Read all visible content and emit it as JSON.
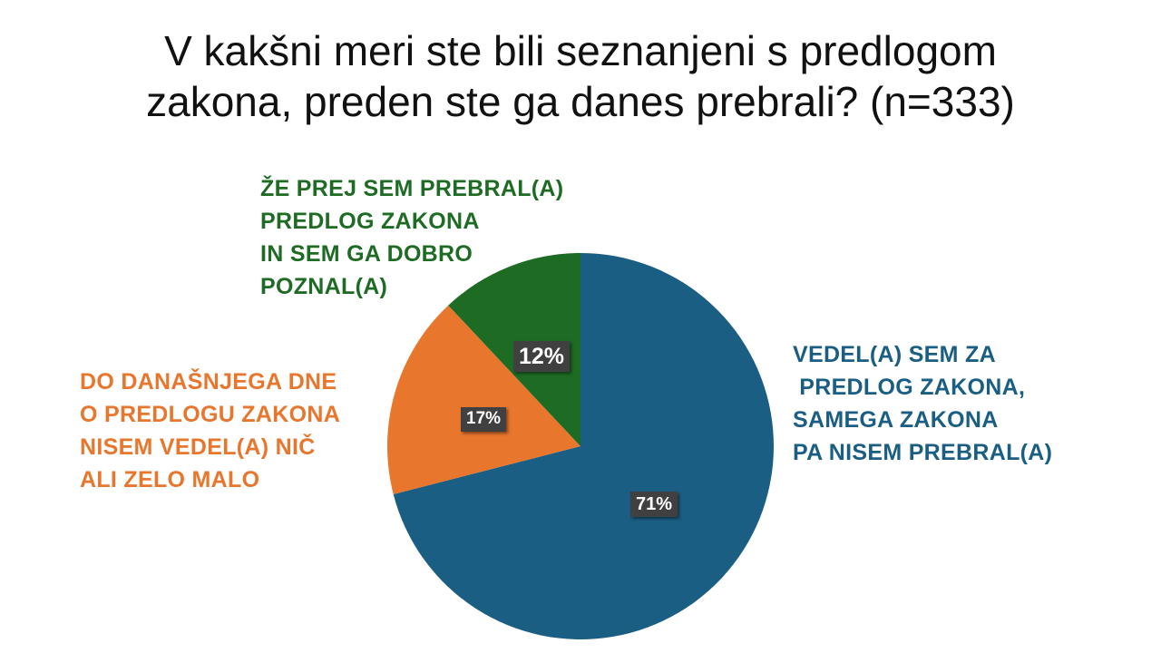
{
  "title_lines": [
    "V kakšni meri ste bili seznanjeni s predlogom",
    "zakona, preden ste ga danes prebrali? (n=333)"
  ],
  "chart_data": {
    "type": "pie",
    "title": "V kakšni meri ste bili seznanjeni s predlogom zakona, preden ste ga danes prebrali? (n=333)",
    "slices": [
      {
        "label_lines": [
          "VEDEL(A) SEM ZA",
          " PREDLOG ZAKONA,",
          "SAMEGA ZAKONA",
          "PA NISEM PREBRAL(A)"
        ],
        "value": 71,
        "value_label": "71%",
        "color": "#1a5e83"
      },
      {
        "label_lines": [
          "DO DANAŠNJEGA DNE",
          "O PREDLOGU ZAKONA",
          "NISEM VEDEL(A) NIČ",
          "ALI ZELO MALO"
        ],
        "value": 17,
        "value_label": "17%",
        "color": "#e8762d"
      },
      {
        "label_lines": [
          "ŽE PREJ SEM PREBRAL(A)",
          "PREDLOG ZAKONA",
          "IN SEM GA DOBRO",
          "POZNAL(A)"
        ],
        "value": 12,
        "value_label": "12%",
        "color": "#1e6b24"
      }
    ],
    "start_angle": "12 o'clock",
    "direction": "clockwise",
    "legend": "none",
    "data_label_style": {
      "background": "#404040",
      "text": "#ffffff"
    }
  }
}
